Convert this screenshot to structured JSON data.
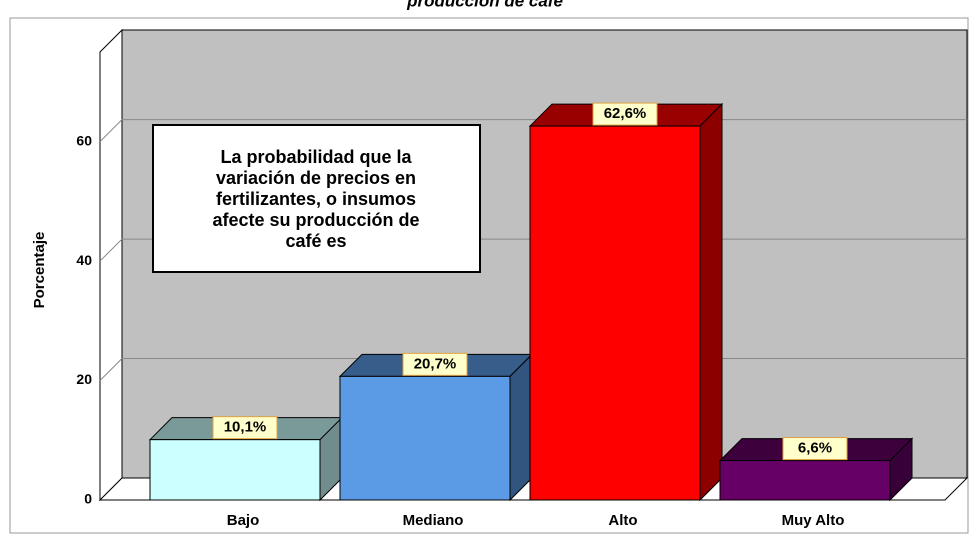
{
  "chart_data": {
    "type": "bar3d",
    "title": "producción de café",
    "ylabel": "Porcentaje",
    "annotation": [
      "La probabilidad que la",
      "variación de precios en",
      "fertilizantes, o insumos",
      "afecte su producción de",
      "café es"
    ],
    "categories": [
      "Bajo",
      "Mediano",
      "Alto",
      "Muy Alto"
    ],
    "values": [
      10.1,
      20.7,
      62.6,
      6.6
    ],
    "value_labels": [
      "10,1%",
      "20,7%",
      "62,6%",
      "6,6%"
    ],
    "colors": [
      "#ccffff",
      "#5b9be6",
      "#ff0000",
      "#660066"
    ],
    "ylim": [
      0,
      75
    ],
    "yticks": [
      0,
      20,
      40,
      60
    ],
    "grid": true
  }
}
